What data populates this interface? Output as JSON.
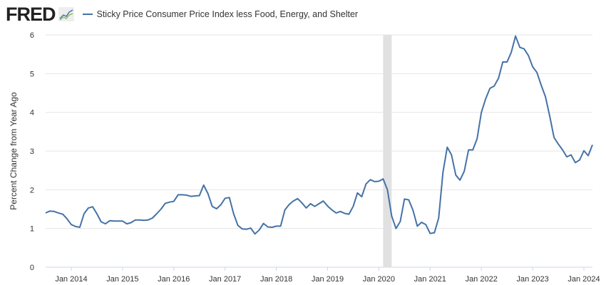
{
  "header": {
    "logo": "FRED",
    "series_name": "Sticky Price Consumer Price Index less Food, Energy, and Shelter"
  },
  "colors": {
    "line": "#4572a7",
    "grid": "#e6e6e6",
    "recession": "#e1e1e1"
  },
  "chart_data": {
    "type": "line",
    "title": "Sticky Price Consumer Price Index less Food, Energy, and Shelter",
    "xlabel": "",
    "ylabel": "Percent Change from Year Ago",
    "start": "2013-07",
    "frequency": "monthly",
    "ylim": [
      0,
      6
    ],
    "yticks": [
      "0",
      "1",
      "2",
      "3",
      "4",
      "5",
      "6"
    ],
    "xticks": [
      "Jan 2014",
      "Jan 2015",
      "Jan 2016",
      "Jan 2017",
      "Jan 2018",
      "Jan 2019",
      "Jan 2020",
      "Jan 2021",
      "Jan 2022",
      "Jan 2023",
      "Jan 2024"
    ],
    "recession": [
      "2020-02",
      "2020-04"
    ],
    "grid": true,
    "values": [
      1.4,
      1.45,
      1.44,
      1.4,
      1.37,
      1.25,
      1.1,
      1.05,
      1.03,
      1.38,
      1.53,
      1.56,
      1.38,
      1.17,
      1.12,
      1.2,
      1.19,
      1.19,
      1.19,
      1.12,
      1.15,
      1.22,
      1.22,
      1.21,
      1.22,
      1.27,
      1.38,
      1.5,
      1.65,
      1.68,
      1.7,
      1.87,
      1.87,
      1.86,
      1.83,
      1.84,
      1.85,
      2.12,
      1.9,
      1.57,
      1.51,
      1.61,
      1.78,
      1.8,
      1.38,
      1.08,
      0.99,
      0.98,
      1.01,
      0.86,
      0.96,
      1.13,
      1.04,
      1.03,
      1.06,
      1.06,
      1.48,
      1.62,
      1.71,
      1.77,
      1.66,
      1.53,
      1.64,
      1.57,
      1.64,
      1.71,
      1.58,
      1.48,
      1.4,
      1.44,
      1.39,
      1.37,
      1.57,
      1.92,
      1.82,
      2.15,
      2.26,
      2.21,
      2.22,
      2.28,
      2.0,
      1.32,
      1.0,
      1.18,
      1.76,
      1.74,
      1.47,
      1.06,
      1.16,
      1.1,
      0.87,
      0.89,
      1.27,
      2.45,
      3.1,
      2.9,
      2.38,
      2.25,
      2.48,
      3.03,
      3.03,
      3.32,
      4.0,
      4.35,
      4.62,
      4.68,
      4.88,
      5.3,
      5.3,
      5.55,
      5.97,
      5.68,
      5.64,
      5.47,
      5.18,
      5.03,
      4.7,
      4.4,
      3.9,
      3.35,
      3.18,
      3.03,
      2.85,
      2.9,
      2.7,
      2.77,
      3.01,
      2.88,
      3.16
    ]
  }
}
